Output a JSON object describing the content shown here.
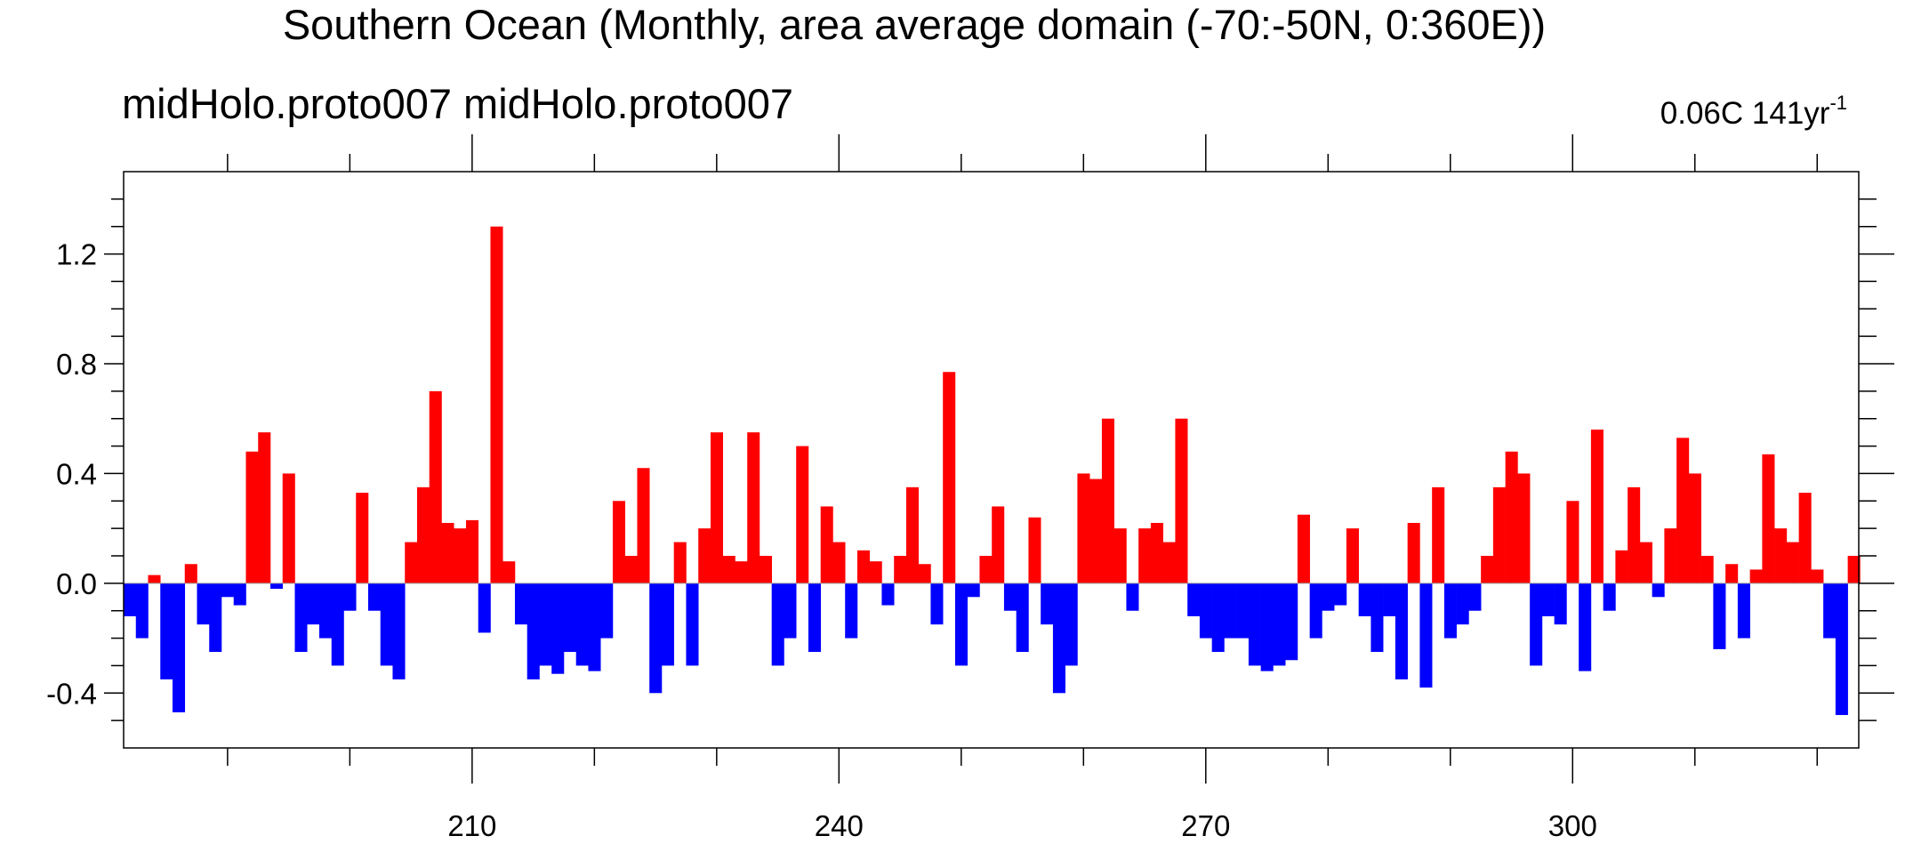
{
  "chart_data": {
    "type": "bar",
    "title": "Southern Ocean (Monthly, area average domain (-70:-50N, 0:360E))",
    "left_subtitle": "midHolo.proto007  midHolo.proto007",
    "right_subtitle": "0.06C 141yr",
    "right_subtitle_sup": "-1",
    "x": [
      182,
      183,
      184,
      185,
      186,
      187,
      188,
      189,
      190,
      191,
      192,
      193,
      194,
      195,
      196,
      197,
      198,
      199,
      200,
      201,
      202,
      203,
      204,
      205,
      206,
      207,
      208,
      209,
      210,
      211,
      212,
      213,
      214,
      215,
      216,
      217,
      218,
      219,
      220,
      221,
      222,
      223,
      224,
      225,
      226,
      227,
      228,
      229,
      230,
      231,
      232,
      233,
      234,
      235,
      236,
      237,
      238,
      239,
      240,
      241,
      242,
      243,
      244,
      245,
      246,
      247,
      248,
      249,
      250,
      251,
      252,
      253,
      254,
      255,
      256,
      257,
      258,
      259,
      260,
      261,
      262,
      263,
      264,
      265,
      266,
      267,
      268,
      269,
      270,
      271,
      272,
      273,
      274,
      275,
      276,
      277,
      278,
      279,
      280,
      281,
      282,
      283,
      284,
      285,
      286,
      287,
      288,
      289,
      290,
      291,
      292,
      293,
      294,
      295,
      296,
      297,
      298,
      299,
      300,
      301,
      302,
      303,
      304,
      305,
      306,
      307,
      308,
      309,
      310,
      311,
      312,
      313,
      314,
      315,
      316,
      317,
      318,
      319,
      320,
      321,
      322,
      323
    ],
    "values": [
      -0.12,
      -0.2,
      0.03,
      -0.35,
      -0.47,
      0.07,
      -0.15,
      -0.25,
      -0.05,
      -0.08,
      0.48,
      0.55,
      -0.02,
      0.4,
      -0.25,
      -0.15,
      -0.2,
      -0.3,
      -0.1,
      0.33,
      -0.1,
      -0.3,
      -0.35,
      0.15,
      0.35,
      0.7,
      0.22,
      0.2,
      0.23,
      -0.18,
      1.3,
      0.08,
      -0.15,
      -0.35,
      -0.3,
      -0.33,
      -0.25,
      -0.3,
      -0.32,
      -0.2,
      0.3,
      0.1,
      0.42,
      -0.4,
      -0.3,
      0.15,
      -0.3,
      0.2,
      0.55,
      0.1,
      0.08,
      0.55,
      0.1,
      -0.3,
      -0.2,
      0.5,
      -0.25,
      0.28,
      0.15,
      -0.2,
      0.12,
      0.08,
      -0.08,
      0.1,
      0.35,
      0.07,
      -0.15,
      0.77,
      -0.3,
      -0.05,
      0.1,
      0.28,
      -0.1,
      -0.25,
      0.24,
      -0.15,
      -0.4,
      -0.3,
      0.4,
      0.38,
      0.6,
      0.2,
      -0.1,
      0.2,
      0.22,
      0.15,
      0.6,
      -0.12,
      -0.2,
      -0.25,
      -0.2,
      -0.2,
      -0.3,
      -0.32,
      -0.3,
      -0.28,
      0.25,
      -0.2,
      -0.1,
      -0.08,
      0.2,
      -0.12,
      -0.25,
      -0.12,
      -0.35,
      0.22,
      -0.38,
      0.35,
      -0.2,
      -0.15,
      -0.1,
      0.1,
      0.35,
      0.48,
      0.4,
      -0.3,
      -0.12,
      -0.15,
      0.3,
      -0.32,
      0.56,
      -0.1,
      0.12,
      0.35,
      0.15,
      -0.05,
      0.2,
      0.53,
      0.4,
      0.1,
      -0.24,
      0.07,
      -0.2,
      0.05,
      0.47,
      0.2,
      0.15,
      0.33,
      0.05,
      -0.2,
      -0.48,
      0.1
    ],
    "positive_color": "#ff0000",
    "negative_color": "#0000ff",
    "xlim": [
      181.5,
      323.4
    ],
    "xticks": [
      210,
      240,
      270,
      300
    ],
    "xminor_ticks": [
      190,
      200,
      220,
      230,
      250,
      260,
      280,
      290,
      310,
      320
    ],
    "ylim": [
      -0.6,
      1.5
    ],
    "yticks": [
      -0.4,
      {
        "value": 0,
        "label": "0.0"
      },
      0.4,
      0.8,
      1.2
    ],
    "yminor_ticks": [
      -0.5,
      -0.3,
      -0.2,
      -0.1,
      0.1,
      0.2,
      0.3,
      0.5,
      0.6,
      0.7,
      0.9,
      1.0,
      1.1,
      1.3,
      1.4
    ]
  }
}
